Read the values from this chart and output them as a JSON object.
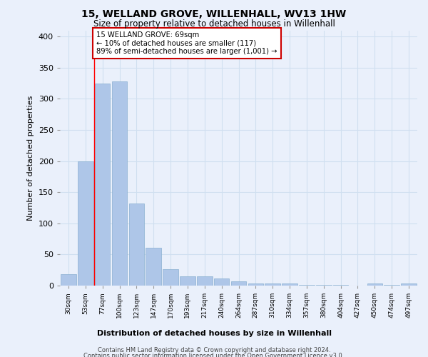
{
  "title": "15, WELLAND GROVE, WILLENHALL, WV13 1HW",
  "subtitle": "Size of property relative to detached houses in Willenhall",
  "xlabel": "Distribution of detached houses by size in Willenhall",
  "ylabel": "Number of detached properties",
  "categories": [
    "30sqm",
    "53sqm",
    "77sqm",
    "100sqm",
    "123sqm",
    "147sqm",
    "170sqm",
    "193sqm",
    "217sqm",
    "240sqm",
    "264sqm",
    "287sqm",
    "310sqm",
    "334sqm",
    "357sqm",
    "380sqm",
    "404sqm",
    "427sqm",
    "450sqm",
    "474sqm",
    "497sqm"
  ],
  "values": [
    18,
    200,
    325,
    328,
    132,
    61,
    26,
    15,
    15,
    12,
    7,
    3,
    3,
    3,
    1,
    1,
    1,
    0,
    3,
    1,
    3
  ],
  "bar_color": "#aec6e8",
  "bar_edge_color": "#8ab0d0",
  "grid_color": "#d0dff0",
  "background_color": "#eaf0fb",
  "property_line_x": 1.5,
  "annotation_text": "15 WELLAND GROVE: 69sqm\n← 10% of detached houses are smaller (117)\n89% of semi-detached houses are larger (1,001) →",
  "annotation_box_color": "#cc0000",
  "ylim": [
    0,
    410
  ],
  "yticks": [
    0,
    50,
    100,
    150,
    200,
    250,
    300,
    350,
    400
  ],
  "footer1": "Contains HM Land Registry data © Crown copyright and database right 2024.",
  "footer2": "Contains public sector information licensed under the Open Government Licence v3.0."
}
